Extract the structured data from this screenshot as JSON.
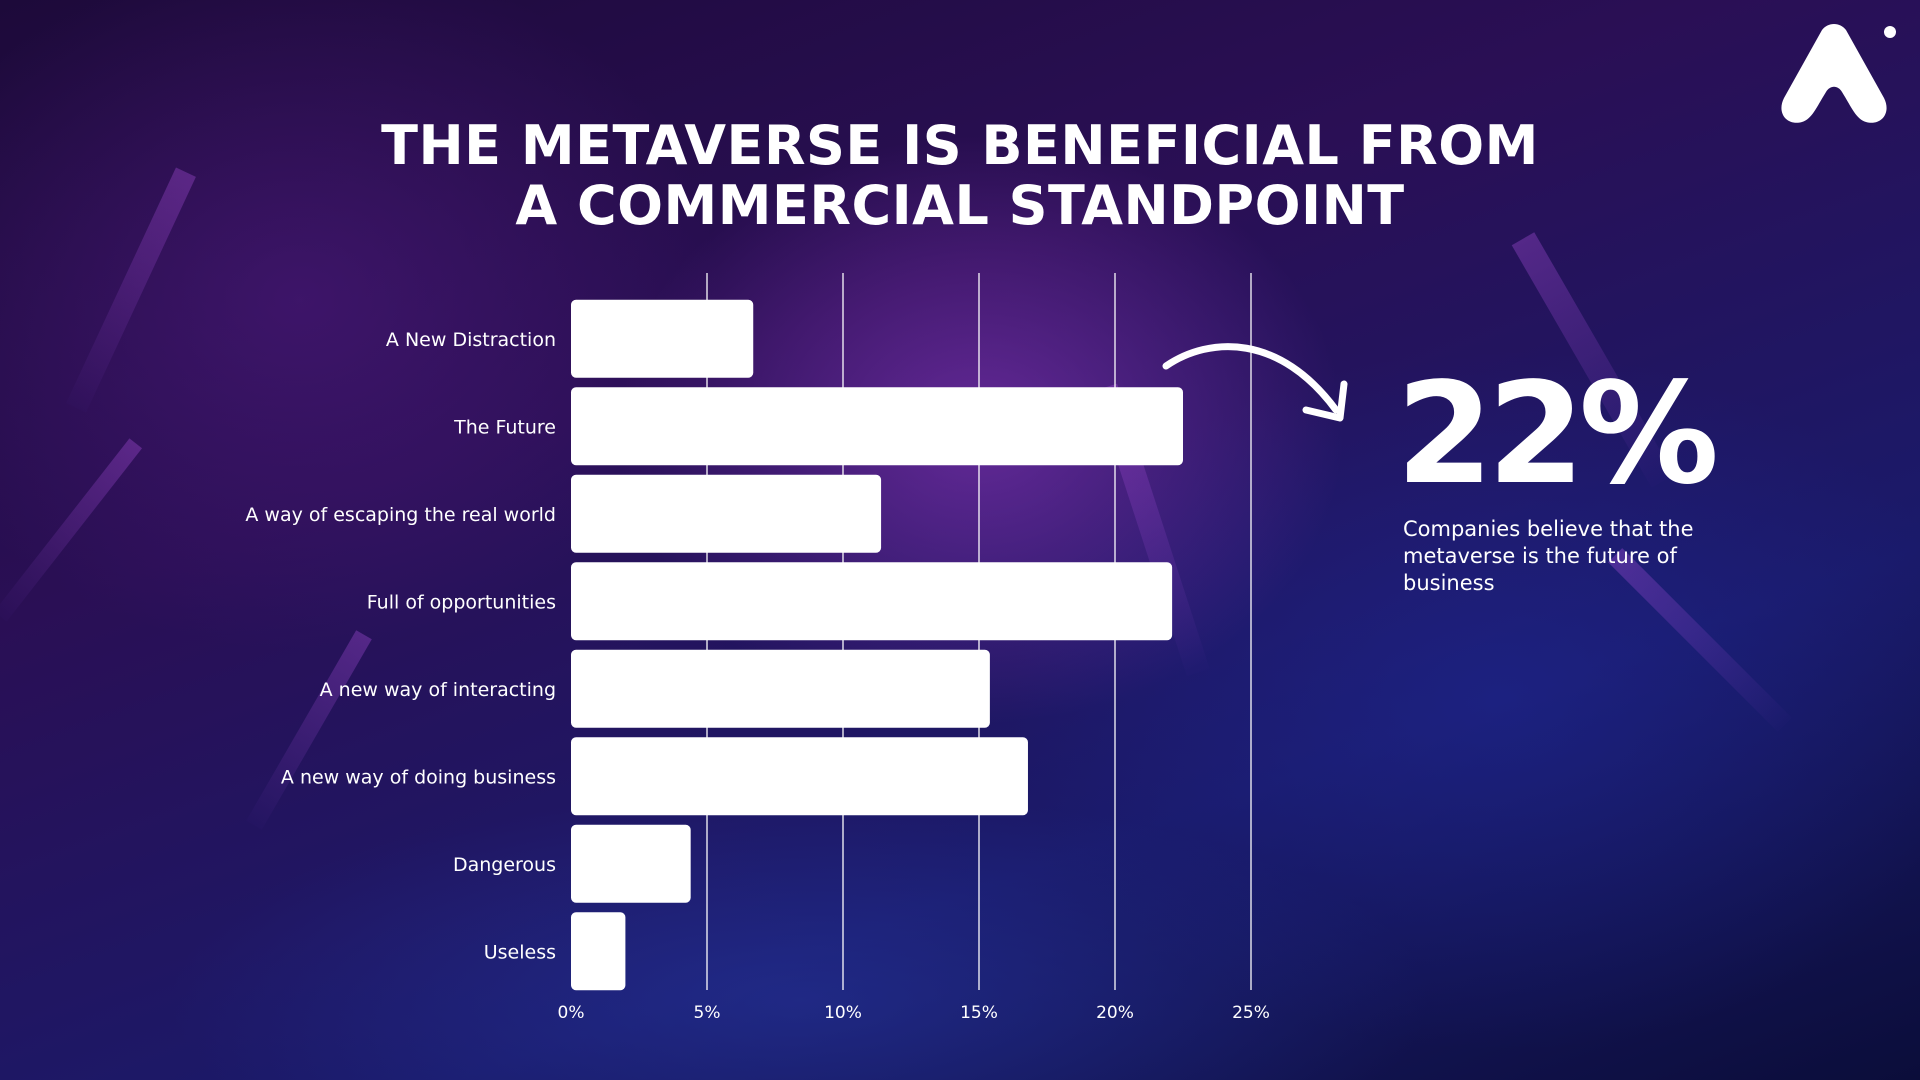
{
  "title_line1": "THE METAVERSE IS BENEFICIAL FROM",
  "title_line2": "A COMMERCIAL STANDPOINT",
  "callout": {
    "value": "22%",
    "text": "Companies believe that the metaverse is the future of business"
  },
  "colors": {
    "bar": "#ffffff",
    "gridline": "#ffffff",
    "text": "#ffffff"
  },
  "chart_data": {
    "type": "bar",
    "orientation": "horizontal",
    "title": "THE METAVERSE IS BENEFICIAL FROM A COMMERCIAL STANDPOINT",
    "categories": [
      "A New Distraction",
      "The Future",
      "A way of escaping the real world",
      "Full of opportunities",
      "A new way of interacting",
      "A new way of doing business",
      "Dangerous",
      "Useless"
    ],
    "values": [
      6.7,
      22.5,
      11.4,
      22.1,
      15.4,
      16.8,
      4.4,
      2.0
    ],
    "xlim": [
      0,
      25
    ],
    "xticks": [
      0,
      5,
      10,
      15,
      20,
      25
    ],
    "tick_labels": [
      "0%",
      "5%",
      "10%",
      "15%",
      "20%",
      "25%"
    ],
    "grid": true,
    "legend": "none"
  },
  "icons": {
    "logo": "brand-logo-icon",
    "arrow": "curved-arrow-icon"
  }
}
